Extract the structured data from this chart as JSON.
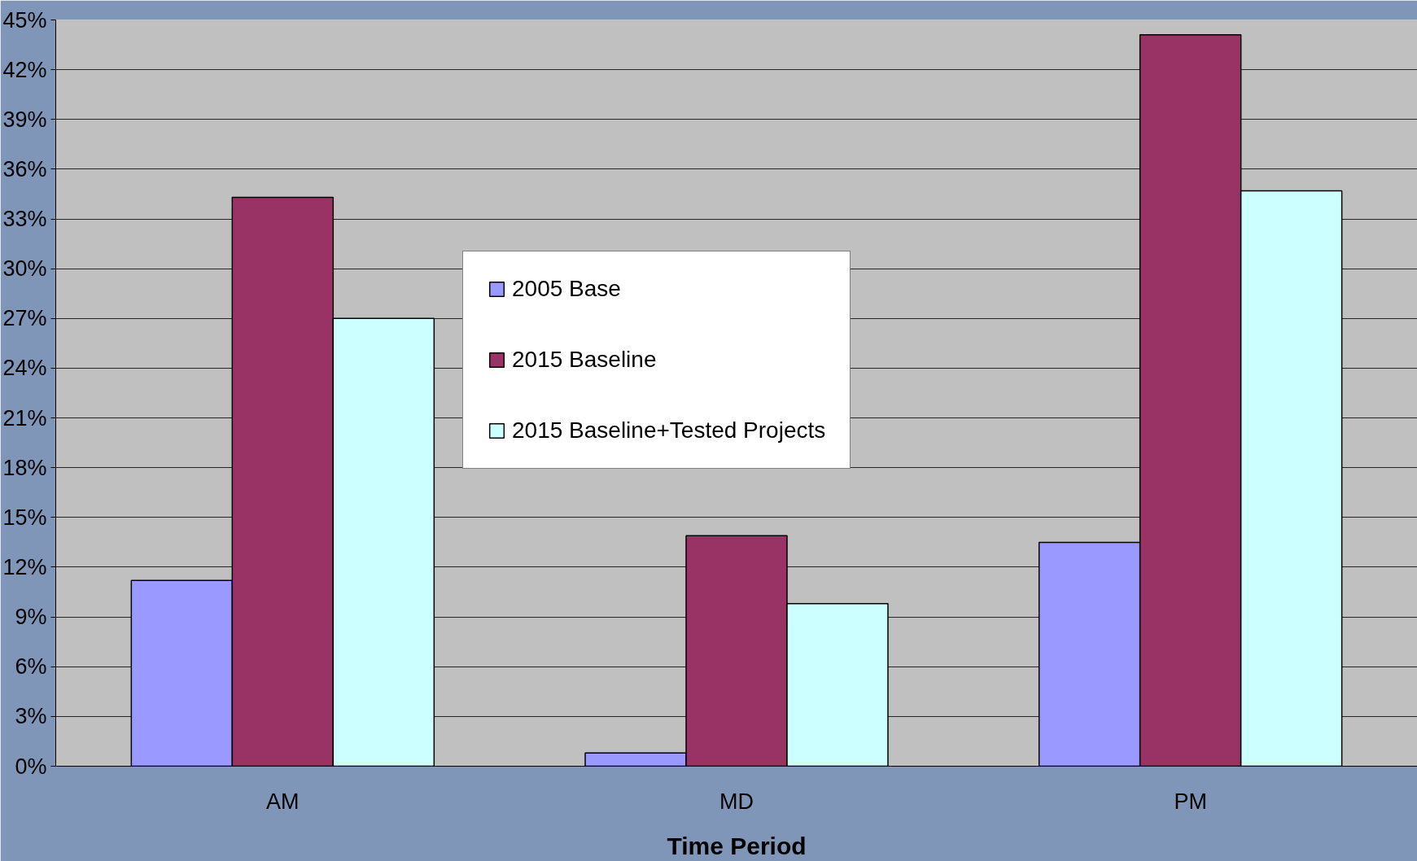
{
  "chart_data": {
    "type": "bar",
    "xlabel": "Time Period",
    "categories": [
      "AM",
      "MD",
      "PM"
    ],
    "series": [
      {
        "name": "2005 Base",
        "color": "#9999ff",
        "values": [
          11.2,
          0.8,
          13.5
        ]
      },
      {
        "name": "2015 Baseline",
        "color": "#993366",
        "values": [
          34.3,
          13.9,
          44.1
        ]
      },
      {
        "name": "2015 Baseline+Tested Projects",
        "color": "#ccffff",
        "values": [
          27.0,
          9.8,
          34.7
        ]
      }
    ],
    "ylim": [
      0,
      45
    ],
    "yticks": [
      {
        "value": 0,
        "label": "0%"
      },
      {
        "value": 3,
        "label": "3%"
      },
      {
        "value": 6,
        "label": "6%"
      },
      {
        "value": 9,
        "label": "9%"
      },
      {
        "value": 12,
        "label": "12%"
      },
      {
        "value": 15,
        "label": "15%"
      },
      {
        "value": 18,
        "label": "18%"
      },
      {
        "value": 21,
        "label": "21%"
      },
      {
        "value": 24,
        "label": "24%"
      },
      {
        "value": 27,
        "label": "27%"
      },
      {
        "value": 30,
        "label": "30%"
      },
      {
        "value": 33,
        "label": "33%"
      },
      {
        "value": 36,
        "label": "36%"
      },
      {
        "value": 39,
        "label": "39%"
      },
      {
        "value": 42,
        "label": "42%"
      },
      {
        "value": 45,
        "label": "45%"
      }
    ],
    "grid": "y",
    "legend": "top"
  }
}
